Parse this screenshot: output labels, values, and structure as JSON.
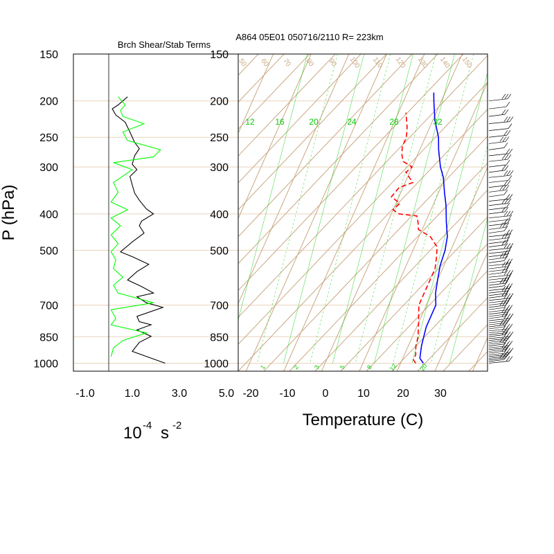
{
  "chart_data": [
    {
      "type": "line",
      "title": "Brch Shear/Stab Terms",
      "xlabel": "10",
      "xlabel_exp": "-4",
      "xlabel_unit": "s",
      "xlabel_unit_exp": "-2",
      "ylabel": "P (hPa)",
      "y_scale": "log",
      "y_reversed": true,
      "xlim": [
        -1.5,
        5.5
      ],
      "ylim": [
        1050,
        150
      ],
      "x_ticks": [
        -1.0,
        1.0,
        3.0,
        5.0
      ],
      "x_tick_labels": [
        "-1.0",
        "1.0",
        "3.0",
        "5.0"
      ],
      "y_ticks": [
        150,
        200,
        250,
        300,
        400,
        500,
        700,
        850,
        1000
      ],
      "y_tick_labels": [
        "150",
        "200",
        "250",
        "300",
        "400",
        "500",
        "700",
        "850",
        "1000"
      ],
      "zero_line_x": 0,
      "series": [
        {
          "color": "#000000",
          "points": [
            [
              0.8,
              195
            ],
            [
              0.4,
              205
            ],
            [
              0.15,
              210
            ],
            [
              0.3,
              218
            ],
            [
              0.7,
              228
            ],
            [
              0.9,
              242
            ],
            [
              1.1,
              258
            ],
            [
              1.3,
              268
            ],
            [
              1.1,
              280
            ],
            [
              1.0,
              295
            ],
            [
              1.2,
              305
            ],
            [
              0.9,
              318
            ],
            [
              1.0,
              335
            ],
            [
              1.1,
              352
            ],
            [
              1.3,
              368
            ],
            [
              1.6,
              388
            ],
            [
              1.9,
              400
            ],
            [
              1.4,
              418
            ],
            [
              1.3,
              430
            ],
            [
              1.5,
              450
            ],
            [
              1.0,
              475
            ],
            [
              0.5,
              505
            ],
            [
              1.0,
              520
            ],
            [
              1.7,
              545
            ],
            [
              1.2,
              570
            ],
            [
              0.8,
              600
            ],
            [
              1.4,
              625
            ],
            [
              1.9,
              650
            ],
            [
              1.2,
              665
            ],
            [
              1.6,
              690
            ],
            [
              2.3,
              710
            ],
            [
              1.2,
              750
            ],
            [
              1.3,
              775
            ],
            [
              1.8,
              790
            ],
            [
              1.2,
              815
            ],
            [
              1.8,
              848
            ],
            [
              1.3,
              880
            ],
            [
              1.0,
              930
            ],
            [
              2.4,
              1000
            ]
          ]
        },
        {
          "color": "#00ff00",
          "points": [
            [
              0.4,
              195
            ],
            [
              0.7,
              205
            ],
            [
              0.5,
              212
            ],
            [
              0.6,
              220
            ],
            [
              1.5,
              230
            ],
            [
              0.6,
              242
            ],
            [
              0.8,
              255
            ],
            [
              2.2,
              270
            ],
            [
              1.9,
              282
            ],
            [
              0.2,
              292
            ],
            [
              1.0,
              305
            ],
            [
              0.2,
              330
            ],
            [
              0.4,
              350
            ],
            [
              0.1,
              372
            ],
            [
              0.8,
              390
            ],
            [
              0.1,
              410
            ],
            [
              0.5,
              430
            ],
            [
              0.1,
              455
            ],
            [
              0.4,
              480
            ],
            [
              0.1,
              505
            ],
            [
              0.3,
              530
            ],
            [
              0.2,
              560
            ],
            [
              0.6,
              590
            ],
            [
              0.2,
              620
            ],
            [
              0.4,
              650
            ],
            [
              1.9,
              690
            ],
            [
              0.1,
              720
            ],
            [
              0.3,
              760
            ],
            [
              0.1,
              790
            ],
            [
              1.6,
              830
            ],
            [
              0.6,
              870
            ],
            [
              0.2,
              910
            ],
            [
              0.1,
              960
            ]
          ]
        }
      ]
    },
    {
      "type": "line",
      "title": "A864 05E01 050716/2110 R= 223km",
      "xlabel": "Temperature (C)",
      "y_scale": "log",
      "y_reversed": true,
      "skew": true,
      "xlim": [
        -23,
        43
      ],
      "ylim": [
        1050,
        150
      ],
      "x_ticks": [
        -20,
        -10,
        0,
        10,
        20,
        30
      ],
      "x_tick_labels": [
        "-20",
        "-10",
        "0",
        "10",
        "20",
        "30"
      ],
      "y_ticks": [
        150,
        200,
        250,
        300,
        400,
        500,
        700,
        850,
        1000
      ],
      "y_tick_labels": [
        "150",
        "200",
        "250",
        "300",
        "400",
        "500",
        "700",
        "850",
        "1000"
      ],
      "mixing_ratio_labels": [
        "12",
        "16",
        "20",
        "24",
        "28",
        "32"
      ],
      "mixing_ratio_labels_bottom": [
        "1",
        "2",
        "3",
        "5",
        "8",
        "12",
        "20"
      ],
      "dry_adiabat_labels": [
        "50",
        "60",
        "70",
        "80",
        "90",
        "100",
        "110",
        "120",
        "130",
        "140",
        "150"
      ],
      "colors": {
        "grid": "#c8a882",
        "mixing_ratio": "#00cc00",
        "temperature": "#0000ff",
        "dewpoint": "#ff0000",
        "wind_barbs": "#000000"
      },
      "series": [
        {
          "color": "#0000ff",
          "points": [
            [
              26,
              1000
            ],
            [
              24.5,
              970
            ],
            [
              23.5,
              900
            ],
            [
              23,
              850
            ],
            [
              22.5,
              800
            ],
            [
              22.5,
              750
            ],
            [
              22.5,
              700
            ],
            [
              21,
              650
            ],
            [
              20,
              600
            ],
            [
              19,
              550
            ],
            [
              18.5,
              500
            ],
            [
              17.5,
              460
            ],
            [
              15.5,
              420
            ],
            [
              13.5,
              380
            ],
            [
              11.5,
              350
            ],
            [
              9.5,
              320
            ],
            [
              7.5,
              300
            ],
            [
              5,
              270
            ],
            [
              3.5,
              250
            ],
            [
              0.5,
              225
            ],
            [
              -2,
              200
            ],
            [
              -3,
              190
            ]
          ]
        },
        {
          "color": "#ff0000",
          "dashed": true,
          "points": [
            [
              24,
              1000
            ],
            [
              23,
              980
            ],
            [
              23,
              950
            ],
            [
              22,
              900
            ],
            [
              21.5,
              850
            ],
            [
              20,
              780
            ],
            [
              19,
              740
            ],
            [
              18,
              700
            ],
            [
              18,
              650
            ],
            [
              18,
              600
            ],
            [
              18,
              560
            ],
            [
              17,
              520
            ],
            [
              16,
              490
            ],
            [
              13,
              460
            ],
            [
              9,
              440
            ],
            [
              8,
              420
            ],
            [
              7,
              405
            ],
            [
              2,
              400
            ],
            [
              0,
              390
            ],
            [
              1,
              375
            ],
            [
              -2,
              360
            ],
            [
              -1,
              340
            ],
            [
              2,
              330
            ],
            [
              -1,
              310
            ],
            [
              0,
              300
            ],
            [
              -3,
              290
            ],
            [
              -4,
              280
            ],
            [
              -5,
              265
            ],
            [
              -5,
              250
            ],
            [
              -6,
              235
            ],
            [
              -8,
              215
            ]
          ]
        }
      ],
      "wind_barbs_side": "right"
    }
  ]
}
